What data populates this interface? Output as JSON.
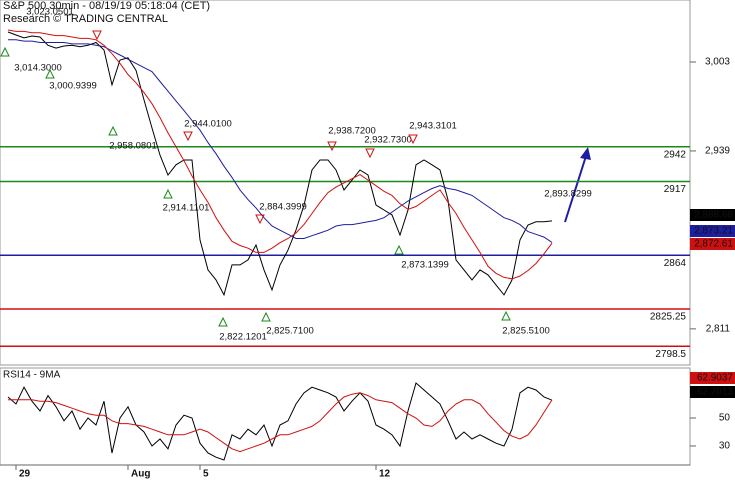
{
  "chart_data": [
    {
      "type": "line",
      "title": "S&P 500 30min - 08/19/19 05:18:04 (CET)",
      "subtitle": "Research © TRADING CENTRAL",
      "categories": [
        null,
        "29",
        null,
        null,
        null,
        null,
        null,
        null,
        null,
        null,
        null,
        null,
        null,
        null,
        null,
        "Aug",
        null,
        null,
        null,
        null,
        null,
        null,
        null,
        null,
        "5",
        null,
        null,
        null,
        null,
        null,
        null,
        null,
        null,
        null,
        null,
        null,
        null,
        null,
        null,
        null,
        null,
        null,
        null,
        null,
        null,
        null,
        "12",
        null,
        null,
        null,
        null,
        null,
        null,
        null,
        null,
        null,
        null,
        null,
        null,
        null,
        null,
        null,
        null,
        null,
        null,
        null,
        null,
        null,
        null
      ],
      "series": [
        {
          "color": "#000000",
          "last_label": "2,888.68",
          "values": [
            3024.6,
            3022.4,
            3020.3,
            3021.7,
            3021,
            3015,
            3013,
            3014.5,
            3015,
            3014,
            3015,
            3017,
            3011.6,
            2986.5,
            3004.4,
            3006,
            2997,
            2975.7,
            2955.5,
            2936,
            2921.7,
            2929,
            2932.5,
            2932.5,
            2875,
            2853.4,
            2846.2,
            2835.4,
            2857,
            2857,
            2860.6,
            2871.3,
            2853.4,
            2839,
            2857,
            2867.7,
            2882.1,
            2900,
            2925.3,
            2932.5,
            2932.5,
            2925.3,
            2910.9,
            2918,
            2925.3,
            2921.7,
            2900.1,
            2896.5,
            2893,
            2878.5,
            2896.5,
            2929,
            2932.5,
            2929,
            2925.3,
            2903.7,
            2860.6,
            2853.4,
            2846.2,
            2853.4,
            2849.8,
            2842.6,
            2835.4,
            2846.2,
            2875,
            2885.7,
            2888,
            2888,
            2888.7
          ]
        },
        {
          "color": "#1e1ea0",
          "last_label": "2,873.21",
          "values": [
            3019,
            3019,
            3018,
            3018,
            3017,
            3017,
            3017,
            3017,
            3016,
            3016,
            3016,
            3015,
            3014,
            3011,
            3008,
            3005,
            3002,
            2999,
            2996,
            2989,
            2982,
            2975,
            2968,
            2961,
            2954,
            2945,
            2937,
            2928,
            2920,
            2911,
            2904,
            2898,
            2891,
            2885,
            2882,
            2879,
            2876,
            2876,
            2878,
            2880,
            2882,
            2885,
            2886,
            2886,
            2887,
            2888,
            2889,
            2891,
            2895,
            2899,
            2903,
            2906,
            2909,
            2912,
            2914,
            2912,
            2911,
            2909,
            2907,
            2903,
            2899,
            2895,
            2891,
            2889,
            2886,
            2881,
            2879,
            2877,
            2873.2
          ]
        },
        {
          "color": "#d01010",
          "last_label": "2,872.61",
          "values": [
            3026,
            3025,
            3025,
            3024,
            3024,
            3023,
            3022,
            3022,
            3021,
            3020,
            3020,
            3019,
            3015,
            3009,
            3002,
            2994,
            2988,
            2981,
            2973,
            2963,
            2952,
            2942,
            2932,
            2921,
            2911,
            2902,
            2891,
            2882,
            2874,
            2871,
            2869,
            2866,
            2866,
            2869,
            2873,
            2876,
            2880,
            2886,
            2894,
            2902,
            2909,
            2913,
            2916,
            2919,
            2922,
            2918,
            2914,
            2910,
            2907,
            2901,
            2897,
            2899,
            2903,
            2907,
            2911,
            2902,
            2894,
            2884,
            2875,
            2866,
            2856,
            2851,
            2848,
            2847,
            2849,
            2853,
            2858,
            2865,
            2872.6
          ]
        }
      ],
      "levels": [
        {
          "value": 2942,
          "color": "#1a8a1a"
        },
        {
          "value": 2917,
          "color": "#1a8a1a"
        },
        {
          "value": 2864,
          "color": "#1e1ea0"
        },
        {
          "value": 2825.25,
          "color": "#d01010"
        },
        {
          "value": 2798.5,
          "color": "#d01010"
        }
      ],
      "annotations": [
        "3,014.3000",
        "3,000.9399",
        "3,023.0501",
        "2,958.0801",
        "2,944.0100",
        "2,914.1101",
        "2,884.3999",
        "2,822.1201",
        "2,825.7100",
        "2,938.7200",
        "2,932.7300",
        "2,943.3101",
        "2,873.1399",
        "2,893.8299",
        "2,825.5100"
      ],
      "ylim": [
        2785,
        3047.6
      ],
      "yticks": [
        {
          "value": 3003,
          "label": "3,003"
        },
        {
          "value": 2939,
          "label": "2,939"
        },
        {
          "value": 2811,
          "label": "2,811"
        }
      ]
    },
    {
      "type": "line",
      "title": "RSI14 - 9MA",
      "series": [
        {
          "color": "#000000",
          "last_label": "62.7013",
          "values": [
            65,
            60,
            72,
            62,
            55,
            66,
            58,
            48,
            55,
            42,
            50,
            45,
            62,
            25,
            50,
            58,
            45,
            40,
            30,
            35,
            28,
            45,
            52,
            50,
            32,
            25,
            22,
            20,
            38,
            35,
            42,
            38,
            45,
            30,
            45,
            48,
            60,
            68,
            72,
            70,
            68,
            65,
            55,
            62,
            68,
            62,
            45,
            42,
            38,
            30,
            55,
            75,
            70,
            65,
            60,
            48,
            35,
            40,
            35,
            38,
            35,
            32,
            30,
            42,
            68,
            72,
            70,
            65,
            62.7
          ]
        },
        {
          "color": "#d01010",
          "last_label": "62.9037",
          "values": [
            63,
            63,
            63,
            63,
            62,
            62,
            61,
            59,
            57,
            55,
            53,
            52,
            52,
            48,
            46,
            46,
            45,
            44,
            42,
            40,
            38,
            38,
            38,
            40,
            42,
            40,
            36,
            32,
            28,
            26,
            28,
            30,
            32,
            35,
            38,
            38,
            40,
            42,
            44,
            48,
            54,
            60,
            65,
            67,
            68,
            66,
            63,
            62,
            61,
            57,
            53,
            50,
            45,
            44,
            48,
            55,
            60,
            63,
            63,
            60,
            53,
            47,
            41,
            37,
            35,
            38,
            45,
            54,
            62.9
          ]
        }
      ],
      "ylim": [
        16.4,
        84.3
      ],
      "yticks": [
        50,
        30
      ]
    }
  ]
}
